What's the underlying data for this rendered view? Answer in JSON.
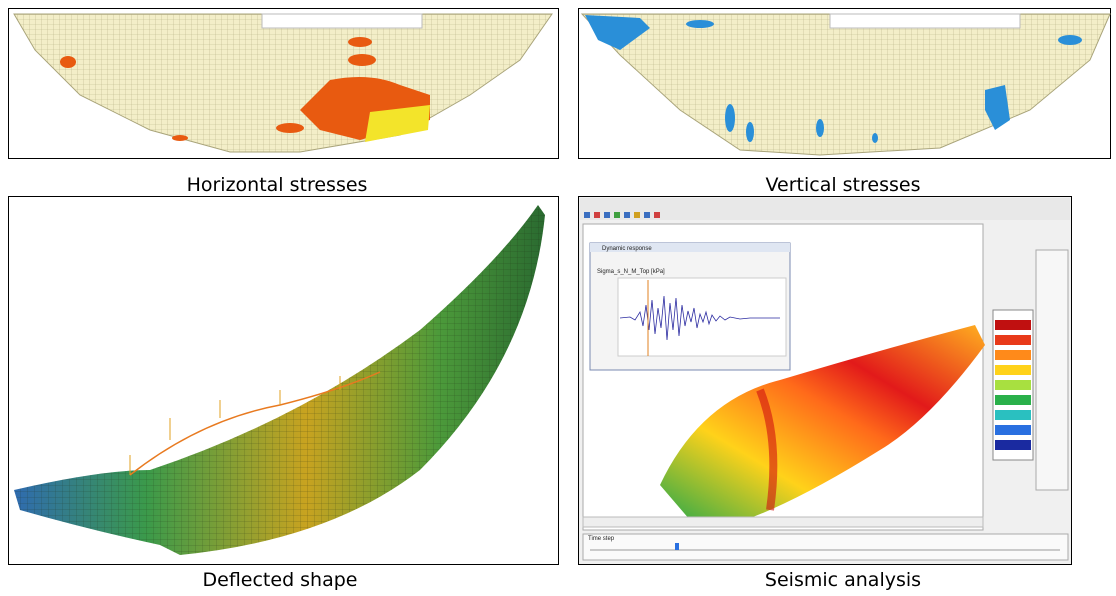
{
  "figure": {
    "panels": [
      {
        "caption": "Horizontal stresses"
      },
      {
        "caption": "Vertical stresses"
      },
      {
        "caption": "Deflected shape"
      },
      {
        "caption": "Seismic analysis",
        "window_title": "Dynamic response",
        "plot_label": "Sigma_s_N_M_Top [kPa]",
        "time_label": "Time step"
      }
    ]
  }
}
